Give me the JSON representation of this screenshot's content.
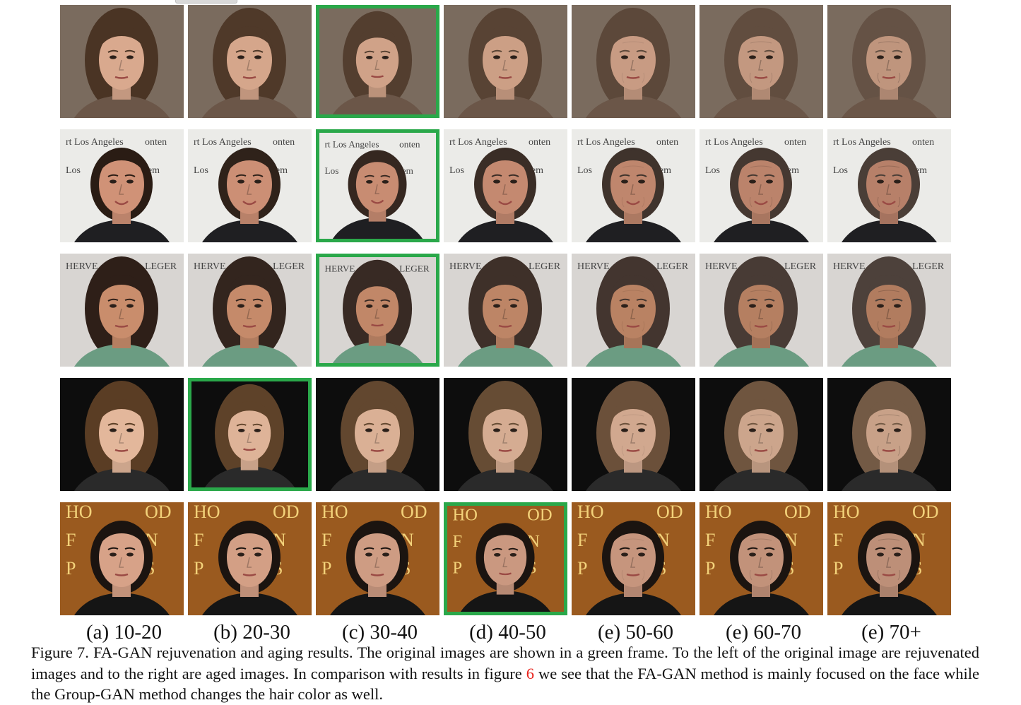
{
  "columns": [
    "(a) 10-20",
    "(b) 20-30",
    "(c) 30-40",
    "(d) 40-50",
    "(e) 50-60",
    "(e) 60-70",
    "(e) 70+"
  ],
  "rows": [
    {
      "bg": "#7a6b5e",
      "hair": "#4a3424",
      "skin": "#d9a98e",
      "shirt": "#6b5648",
      "original_col": 2,
      "sign_texts": []
    },
    {
      "bg": "#ebebe8",
      "hair": "#2a1c14",
      "skin": "#d09277",
      "shirt": "#1f1f22",
      "original_col": 2,
      "sign_texts": [
        "rt Los Angeles",
        "onten",
        "Los",
        "tem"
      ]
    },
    {
      "bg": "#d8d5d2",
      "hair": "#2e1f18",
      "skin": "#c98d6c",
      "shirt": "#6b9c82",
      "original_col": 2,
      "sign_texts": [
        "HERVE",
        "LEGER"
      ]
    },
    {
      "bg": "#0d0d0d",
      "hair": "#5a3d24",
      "skin": "#e3b79b",
      "shirt": "#2a2a2a",
      "original_col": 1,
      "sign_texts": []
    },
    {
      "bg": "#9a5a1f",
      "hair": "#1b1410",
      "skin": "#d7a288",
      "shirt": "#151515",
      "original_col": 3,
      "sign_texts": [
        "HO",
        "OD",
        "F",
        "N",
        "P",
        "S"
      ]
    }
  ],
  "caption": {
    "before_ref": "Figure 7. FA-GAN rejuvenation and aging results. The original images are shown in a green frame. To the left of the original image are rejuvenated images and to the right are aged images. In comparison with results in figure ",
    "ref": "6",
    "after_ref": " we see that the FA-GAN method is mainly focused on the face while the Group-GAN method changes the hair color as well."
  }
}
